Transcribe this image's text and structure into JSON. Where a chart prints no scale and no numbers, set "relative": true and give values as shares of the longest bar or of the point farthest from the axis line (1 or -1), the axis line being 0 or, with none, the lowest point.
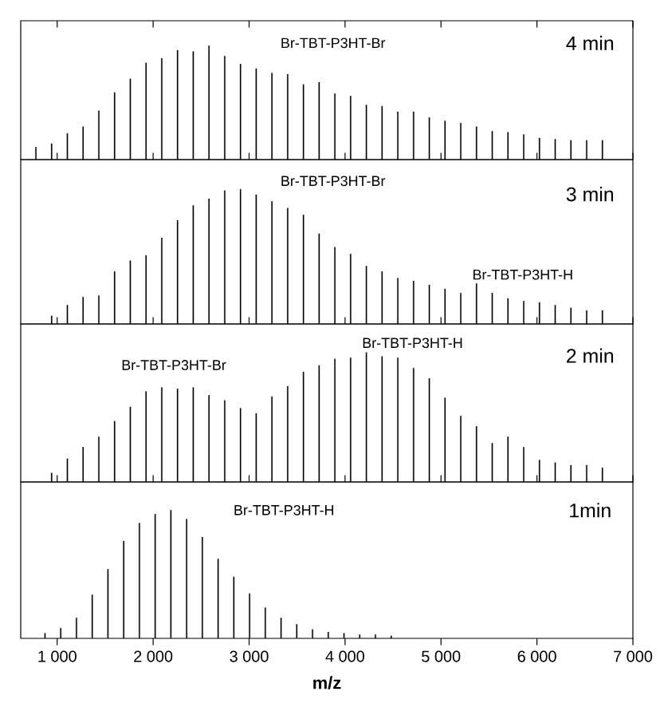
{
  "chart_data": [
    {
      "type": "bar",
      "relative": true,
      "color": "#000000",
      "xlim": [
        620,
        7000
      ],
      "xticks": [
        1000,
        2000,
        3000,
        4000,
        5000,
        6000,
        7000
      ],
      "tick_labels": false,
      "annotations": [
        "Br-TBT-P3HT-Br",
        "4 min"
      ],
      "x": [
        778,
        942,
        1106,
        1270,
        1434,
        1598,
        1762,
        1926,
        2090,
        2254,
        2418,
        2582,
        2746,
        2910,
        3074,
        3238,
        3402,
        3566,
        3730,
        3894,
        4058,
        4222,
        4386,
        4550,
        4714,
        4878,
        5042,
        5206,
        5370,
        5534,
        5698,
        5862,
        6026,
        6190,
        6354,
        6518,
        6682
      ],
      "values": [
        0.11,
        0.14,
        0.23,
        0.29,
        0.43,
        0.59,
        0.71,
        0.85,
        0.89,
        0.96,
        0.95,
        1,
        0.91,
        0.84,
        0.8,
        0.76,
        0.75,
        0.66,
        0.68,
        0.58,
        0.56,
        0.48,
        0.47,
        0.42,
        0.42,
        0.37,
        0.34,
        0.32,
        0.29,
        0.25,
        0.24,
        0.22,
        0.19,
        0.18,
        0.17,
        0.17,
        0.17
      ]
    },
    {
      "type": "bar",
      "relative": true,
      "color": "#000000",
      "xlim": [
        620,
        7000
      ],
      "xticks": [
        1000,
        2000,
        3000,
        4000,
        5000,
        6000,
        7000
      ],
      "tick_labels": false,
      "annotations": [
        "Br-TBT-P3HT-Br",
        "3 min",
        "Br-TBT-P3HT-H"
      ],
      "x": [
        942,
        1106,
        1270,
        1434,
        1598,
        1762,
        1926,
        2090,
        2254,
        2418,
        2582,
        2746,
        2910,
        3074,
        3238,
        3402,
        3566,
        3730,
        3894,
        4058,
        4222,
        4386,
        4550,
        4714,
        4878,
        5042,
        5206,
        5370,
        5534,
        5698,
        5862,
        6026,
        6190,
        6354,
        6518,
        6682
      ],
      "values": [
        0.06,
        0.14,
        0.2,
        0.21,
        0.39,
        0.47,
        0.51,
        0.64,
        0.77,
        0.88,
        0.93,
        0.99,
        1,
        0.96,
        0.91,
        0.86,
        0.81,
        0.67,
        0.57,
        0.52,
        0.43,
        0.39,
        0.34,
        0.32,
        0.29,
        0.26,
        0.23,
        0.3,
        0.23,
        0.19,
        0.17,
        0.16,
        0.14,
        0.12,
        0.1,
        0.1
      ]
    },
    {
      "type": "bar",
      "relative": true,
      "color": "#000000",
      "xlim": [
        620,
        7000
      ],
      "xticks": [
        1000,
        2000,
        3000,
        4000,
        5000,
        6000,
        7000
      ],
      "tick_labels": false,
      "annotations": [
        "Br-TBT-P3HT-Br",
        "Br-TBT-P3HT-H",
        "2 min"
      ],
      "x": [
        942,
        1106,
        1270,
        1434,
        1598,
        1762,
        1926,
        2090,
        2254,
        2418,
        2582,
        2746,
        2910,
        3074,
        3238,
        3402,
        3566,
        3730,
        3894,
        4058,
        4222,
        4386,
        4550,
        4714,
        4878,
        5042,
        5206,
        5370,
        5534,
        5698,
        5862,
        6026,
        6190,
        6354,
        6518,
        6682
      ],
      "values": [
        0.07,
        0.18,
        0.27,
        0.35,
        0.47,
        0.58,
        0.7,
        0.73,
        0.72,
        0.73,
        0.67,
        0.63,
        0.57,
        0.53,
        0.66,
        0.74,
        0.85,
        0.9,
        0.95,
        0.96,
        1,
        0.97,
        0.96,
        0.88,
        0.8,
        0.65,
        0.51,
        0.43,
        0.3,
        0.35,
        0.27,
        0.17,
        0.15,
        0.13,
        0.13,
        0.11
      ]
    },
    {
      "type": "bar",
      "relative": true,
      "color": "#000000",
      "xlim": [
        620,
        7000
      ],
      "tick_labels": "x",
      "xlabel": "m/z",
      "xticks": [
        {
          "value": 1000,
          "label": "1 000"
        },
        {
          "value": 2000,
          "label": "2 000"
        },
        {
          "value": 3000,
          "label": "3 000"
        },
        {
          "value": 4000,
          "label": "4 000"
        },
        {
          "value": 5000,
          "label": "5 000"
        },
        {
          "value": 6000,
          "label": "6 000"
        },
        {
          "value": 7000,
          "label": "7 000"
        }
      ],
      "annotations": [
        "Br-TBT-P3HT-H",
        "1min"
      ],
      "x": [
        873,
        1037,
        1201,
        1365,
        1529,
        1693,
        1857,
        2021,
        2185,
        2349,
        2513,
        2677,
        2841,
        3005,
        3169,
        3333,
        3497,
        3661,
        3825,
        3989,
        4153,
        4317,
        4481
      ],
      "values": [
        0.04,
        0.08,
        0.16,
        0.34,
        0.54,
        0.76,
        0.9,
        0.97,
        1,
        0.93,
        0.79,
        0.62,
        0.48,
        0.35,
        0.24,
        0.16,
        0.11,
        0.07,
        0.05,
        0.04,
        0.03,
        0.03,
        0.02
      ]
    }
  ]
}
